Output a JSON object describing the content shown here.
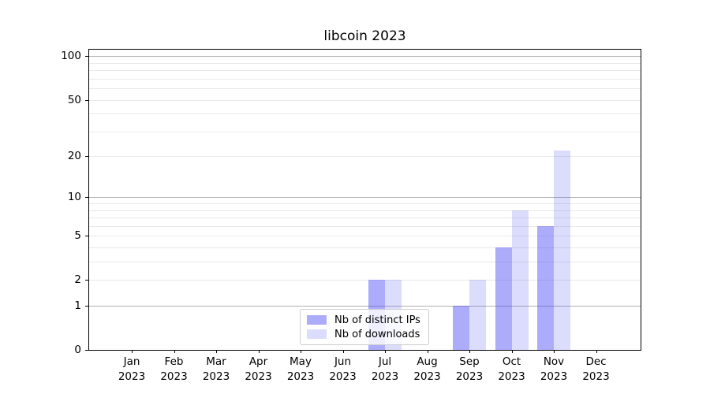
{
  "chart_data": {
    "type": "bar",
    "title": "libcoin 2023",
    "x_categories": [
      "Jan",
      "Feb",
      "Mar",
      "Apr",
      "May",
      "Jun",
      "Jul",
      "Aug",
      "Sep",
      "Oct",
      "Nov",
      "Dec"
    ],
    "x_year": "2023",
    "series": [
      {
        "name": "Nb of distinct IPs",
        "color": "#4646f5",
        "alpha": 0.45,
        "values": [
          0,
          0,
          0,
          0,
          0,
          0,
          2,
          0,
          1,
          4,
          6,
          0
        ]
      },
      {
        "name": "Nb of downloads",
        "color": "#4646f5",
        "alpha": 0.19,
        "values": [
          0,
          0,
          0,
          0,
          0,
          0,
          2,
          0,
          2,
          8,
          22,
          0
        ]
      }
    ],
    "yscale": "log1p",
    "ylim": [
      0,
      111
    ],
    "y_tick_values": [
      0,
      1,
      2,
      5,
      10,
      20,
      50,
      100
    ],
    "y_major_gridlines": [
      1,
      10,
      100
    ],
    "y_minor_gridlines": [
      2,
      3,
      4,
      5,
      6,
      7,
      8,
      9,
      20,
      30,
      40,
      50,
      60,
      70,
      80,
      90
    ],
    "grid": true,
    "legend_position": "lower center",
    "colors": {
      "major_grid": "#b0b0b0",
      "minor_grid": "#e9e9e9",
      "spine": "#000000",
      "text": "#000000"
    }
  }
}
